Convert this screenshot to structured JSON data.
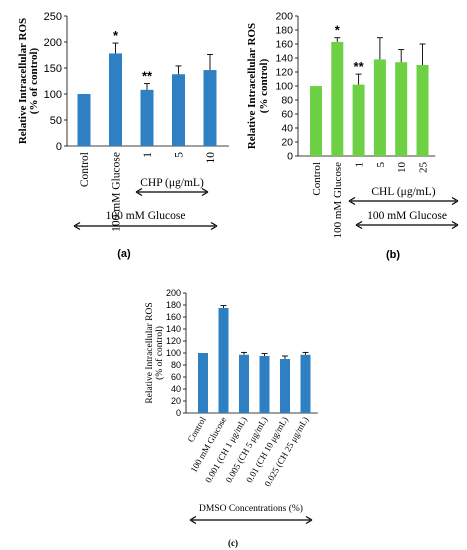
{
  "chart_data": [
    {
      "panel_label": "(a)",
      "type": "bar",
      "ylabel": "Relative Intracellular ROS (% of control)",
      "ylim": [
        0,
        250
      ],
      "yticks": [
        "0",
        "50",
        "100",
        "150",
        "200",
        "250"
      ],
      "categories": [
        "Control",
        "100 mM Glucose",
        "1",
        "5",
        "10"
      ],
      "values": [
        100,
        178,
        108,
        138,
        146
      ],
      "errors": [
        1,
        20,
        12,
        16,
        30
      ],
      "annotations": [
        "",
        "*",
        "**",
        "",
        ""
      ],
      "bar_color": "#2e80c2",
      "bracket_inner": "CHP (μg/mL)",
      "bracket_outer": "100 mM Glucose"
    },
    {
      "panel_label": "(b)",
      "type": "bar",
      "ylabel": "Relative Intracellular ROS (% control)",
      "ylim": [
        0,
        200
      ],
      "yticks": [
        "0",
        "20",
        "40",
        "60",
        "80",
        "100",
        "120",
        "140",
        "160",
        "180",
        "200"
      ],
      "categories": [
        "Control",
        "100 mM Glucose",
        "1",
        "5",
        "10",
        "25"
      ],
      "values": [
        100,
        163,
        102,
        138,
        134,
        130
      ],
      "errors": [
        1,
        6,
        15,
        31,
        18,
        30
      ],
      "annotations": [
        "",
        "*",
        "**",
        "",
        "",
        ""
      ],
      "bar_color": "#6ed145",
      "bracket_inner": "CHL (μg/mL)",
      "bracket_outer": "100 mM Glucose"
    },
    {
      "panel_label": "(c)",
      "type": "bar",
      "ylabel": "Relative Intracellular ROS (% of control)",
      "ylim": [
        0,
        200
      ],
      "yticks": [
        "0",
        "20",
        "40",
        "60",
        "80",
        "100",
        "120",
        "140",
        "160",
        "180",
        "200"
      ],
      "categories": [
        "Control",
        "100 mM Glucose",
        "0.001 (CH 1 μg/mL)",
        "0.005 (CH 5 μg/mL)",
        "0.01 (CH 10 μg/mL)",
        "0.025 (CH 25 μg/mL)"
      ],
      "values": [
        100,
        175,
        97,
        95,
        90,
        97
      ],
      "errors": [
        1,
        4,
        4,
        4,
        5,
        4
      ],
      "annotations": [
        "",
        "",
        "",
        "",
        "",
        ""
      ],
      "bar_color": "#2e80c2",
      "bracket_inner": "",
      "bracket_outer": "DMSO Concentrations (%)"
    }
  ]
}
